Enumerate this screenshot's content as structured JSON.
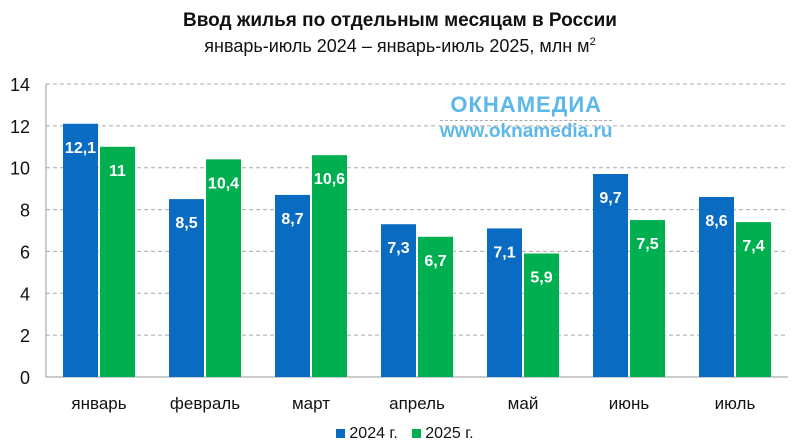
{
  "chart_data": {
    "type": "bar",
    "title": "Ввод жилья по отдельным месяцам в России",
    "subtitle": "январь-июль 2024 – январь-июль 2025, млн м",
    "subtitle_sup": "2",
    "categories": [
      "январь",
      "февраль",
      "март",
      "апрель",
      "май",
      "июнь",
      "июль"
    ],
    "series": [
      {
        "name": "2024 г.",
        "color": "#0a6bc2",
        "values": [
          12.1,
          8.5,
          8.7,
          7.3,
          7.1,
          9.7,
          8.6
        ],
        "labels": [
          "12,1",
          "8,5",
          "8,7",
          "7,3",
          "7,1",
          "9,7",
          "8,6"
        ]
      },
      {
        "name": "2025 г.",
        "color": "#00b050",
        "values": [
          11,
          10.4,
          10.6,
          6.7,
          5.9,
          7.5,
          7.4
        ],
        "labels": [
          "11",
          "10,4",
          "10,6",
          "6,7",
          "5,9",
          "7,5",
          "7,4"
        ]
      }
    ],
    "ylim": [
      0,
      14
    ],
    "yticks": [
      0,
      2,
      4,
      6,
      8,
      10,
      12,
      14
    ],
    "grid": true,
    "legend": "bottom"
  },
  "watermark": {
    "logo": "ОКНАМЕДИА",
    "url": "www.oknamedia.ru"
  }
}
